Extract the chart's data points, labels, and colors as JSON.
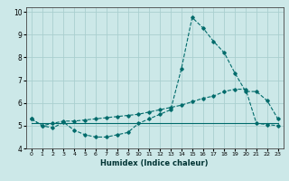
{
  "title": "",
  "xlabel": "Humidex (Indice chaleur)",
  "background_color": "#cce8e8",
  "grid_color": "#aacfcf",
  "line_color": "#006b6b",
  "xlim": [
    -0.5,
    23.5
  ],
  "ylim": [
    4.0,
    10.2
  ],
  "xticks": [
    0,
    1,
    2,
    3,
    4,
    5,
    6,
    7,
    8,
    9,
    10,
    11,
    12,
    13,
    14,
    15,
    16,
    17,
    18,
    19,
    20,
    21,
    22,
    23
  ],
  "yticks": [
    4,
    5,
    6,
    7,
    8,
    9,
    10
  ],
  "line1_x": [
    0,
    1,
    2,
    3,
    4,
    5,
    6,
    7,
    8,
    9,
    10,
    11,
    12,
    13,
    14,
    15,
    16,
    17,
    18,
    19,
    20,
    21,
    22,
    23
  ],
  "line1_y": [
    5.3,
    5.0,
    4.9,
    5.15,
    4.8,
    4.6,
    4.5,
    4.5,
    4.6,
    4.7,
    5.1,
    5.3,
    5.5,
    5.7,
    7.5,
    9.75,
    9.3,
    8.7,
    8.2,
    7.3,
    6.5,
    6.5,
    6.1,
    5.3
  ],
  "line2_x": [
    0,
    1,
    2,
    3,
    4,
    5,
    6,
    7,
    8,
    9,
    10,
    11,
    12,
    13,
    14,
    15,
    16,
    17,
    18,
    19,
    20,
    21,
    22,
    23
  ],
  "line2_y": [
    5.3,
    5.0,
    5.1,
    5.2,
    5.2,
    5.25,
    5.3,
    5.35,
    5.4,
    5.45,
    5.5,
    5.6,
    5.7,
    5.8,
    5.9,
    6.05,
    6.2,
    6.3,
    6.5,
    6.6,
    6.6,
    5.1,
    5.05,
    5.0
  ],
  "line3_x": [
    0,
    23
  ],
  "line3_y": [
    5.1,
    5.1
  ]
}
